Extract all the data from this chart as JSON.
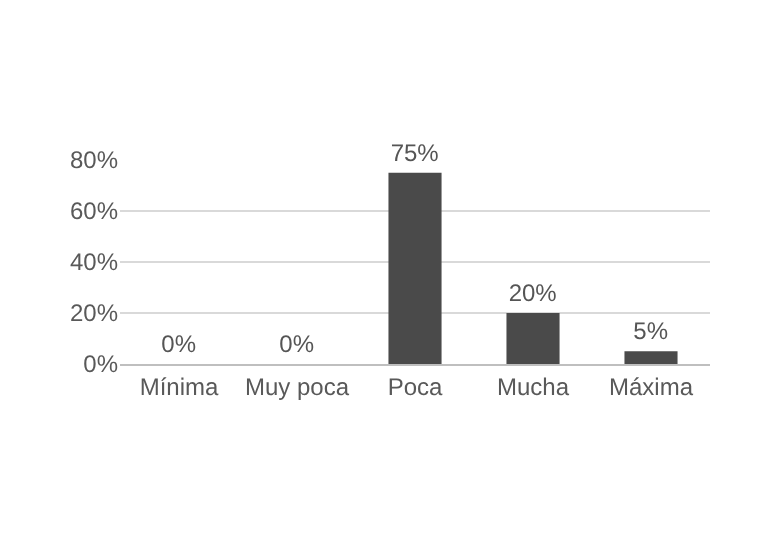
{
  "chart_data": {
    "type": "bar",
    "categories": [
      "Mínima",
      "Muy poca",
      "Poca",
      "Mucha",
      "Máxima"
    ],
    "values": [
      0,
      0,
      75,
      20,
      5
    ],
    "value_labels": [
      "0%",
      "0%",
      "75%",
      "20%",
      "5%"
    ],
    "color": "#4a4a4a",
    "ylim": [
      0,
      80
    ],
    "yticks": [
      {
        "value": 0,
        "label": "0%"
      },
      {
        "value": 20,
        "label": "20%"
      },
      {
        "value": 40,
        "label": "40%"
      },
      {
        "value": 60,
        "label": "60%"
      },
      {
        "value": 80,
        "label": "80%"
      }
    ],
    "grid": "y",
    "legend": false
  }
}
